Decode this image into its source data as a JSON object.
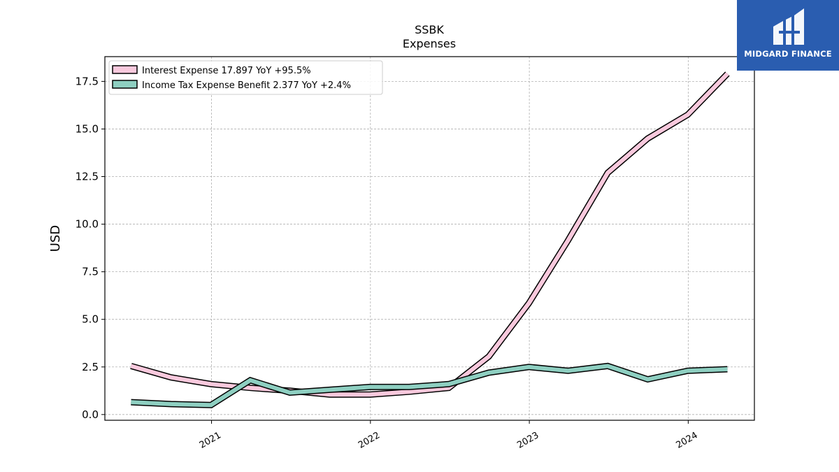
{
  "logo": {
    "text": "MIDGARD FINANCE"
  },
  "chart_data": {
    "type": "line",
    "title": "SSBK",
    "subtitle": "Expenses",
    "xlabel": "",
    "ylabel": "USD",
    "xlim": [
      "2020-05-01",
      "2024-06-01"
    ],
    "ylim": [
      -0.3,
      18.8
    ],
    "x_ticks": [
      "2021",
      "2022",
      "2023",
      "2024"
    ],
    "x_tick_dates": [
      "2021-01-01",
      "2022-01-01",
      "2023-01-01",
      "2024-01-01"
    ],
    "y_ticks": [
      "0.0",
      "2.5",
      "5.0",
      "7.5",
      "10.0",
      "12.5",
      "15.0",
      "17.5"
    ],
    "y_tick_values": [
      0,
      2.5,
      5,
      7.5,
      10,
      12.5,
      15,
      17.5
    ],
    "grid": true,
    "legend_position": "top-left",
    "x": [
      "2020-06-30",
      "2020-09-30",
      "2020-12-31",
      "2021-03-31",
      "2021-06-30",
      "2021-09-30",
      "2021-12-31",
      "2022-03-31",
      "2022-06-30",
      "2022-09-30",
      "2022-12-31",
      "2023-03-31",
      "2023-06-30",
      "2023-09-30",
      "2023-12-31",
      "2024-03-31"
    ],
    "series": [
      {
        "name": "Interest Expense",
        "legend_label": "Interest Expense  17.897 YoY +95.5%",
        "color": "#f9c9dd",
        "values": [
          2.55,
          1.95,
          1.6,
          1.4,
          1.25,
          1.05,
          1.05,
          1.2,
          1.4,
          3.05,
          5.85,
          9.15,
          12.7,
          14.5,
          15.75,
          17.9
        ]
      },
      {
        "name": "Income Tax Expense Benefit",
        "legend_label": "Income Tax Expense Benefit  2.377 YoY +2.4%",
        "color": "#8ecfc1",
        "values": [
          0.65,
          0.55,
          0.5,
          1.8,
          1.15,
          1.3,
          1.45,
          1.45,
          1.6,
          2.2,
          2.5,
          2.3,
          2.55,
          1.85,
          2.3,
          2.38
        ]
      }
    ]
  }
}
